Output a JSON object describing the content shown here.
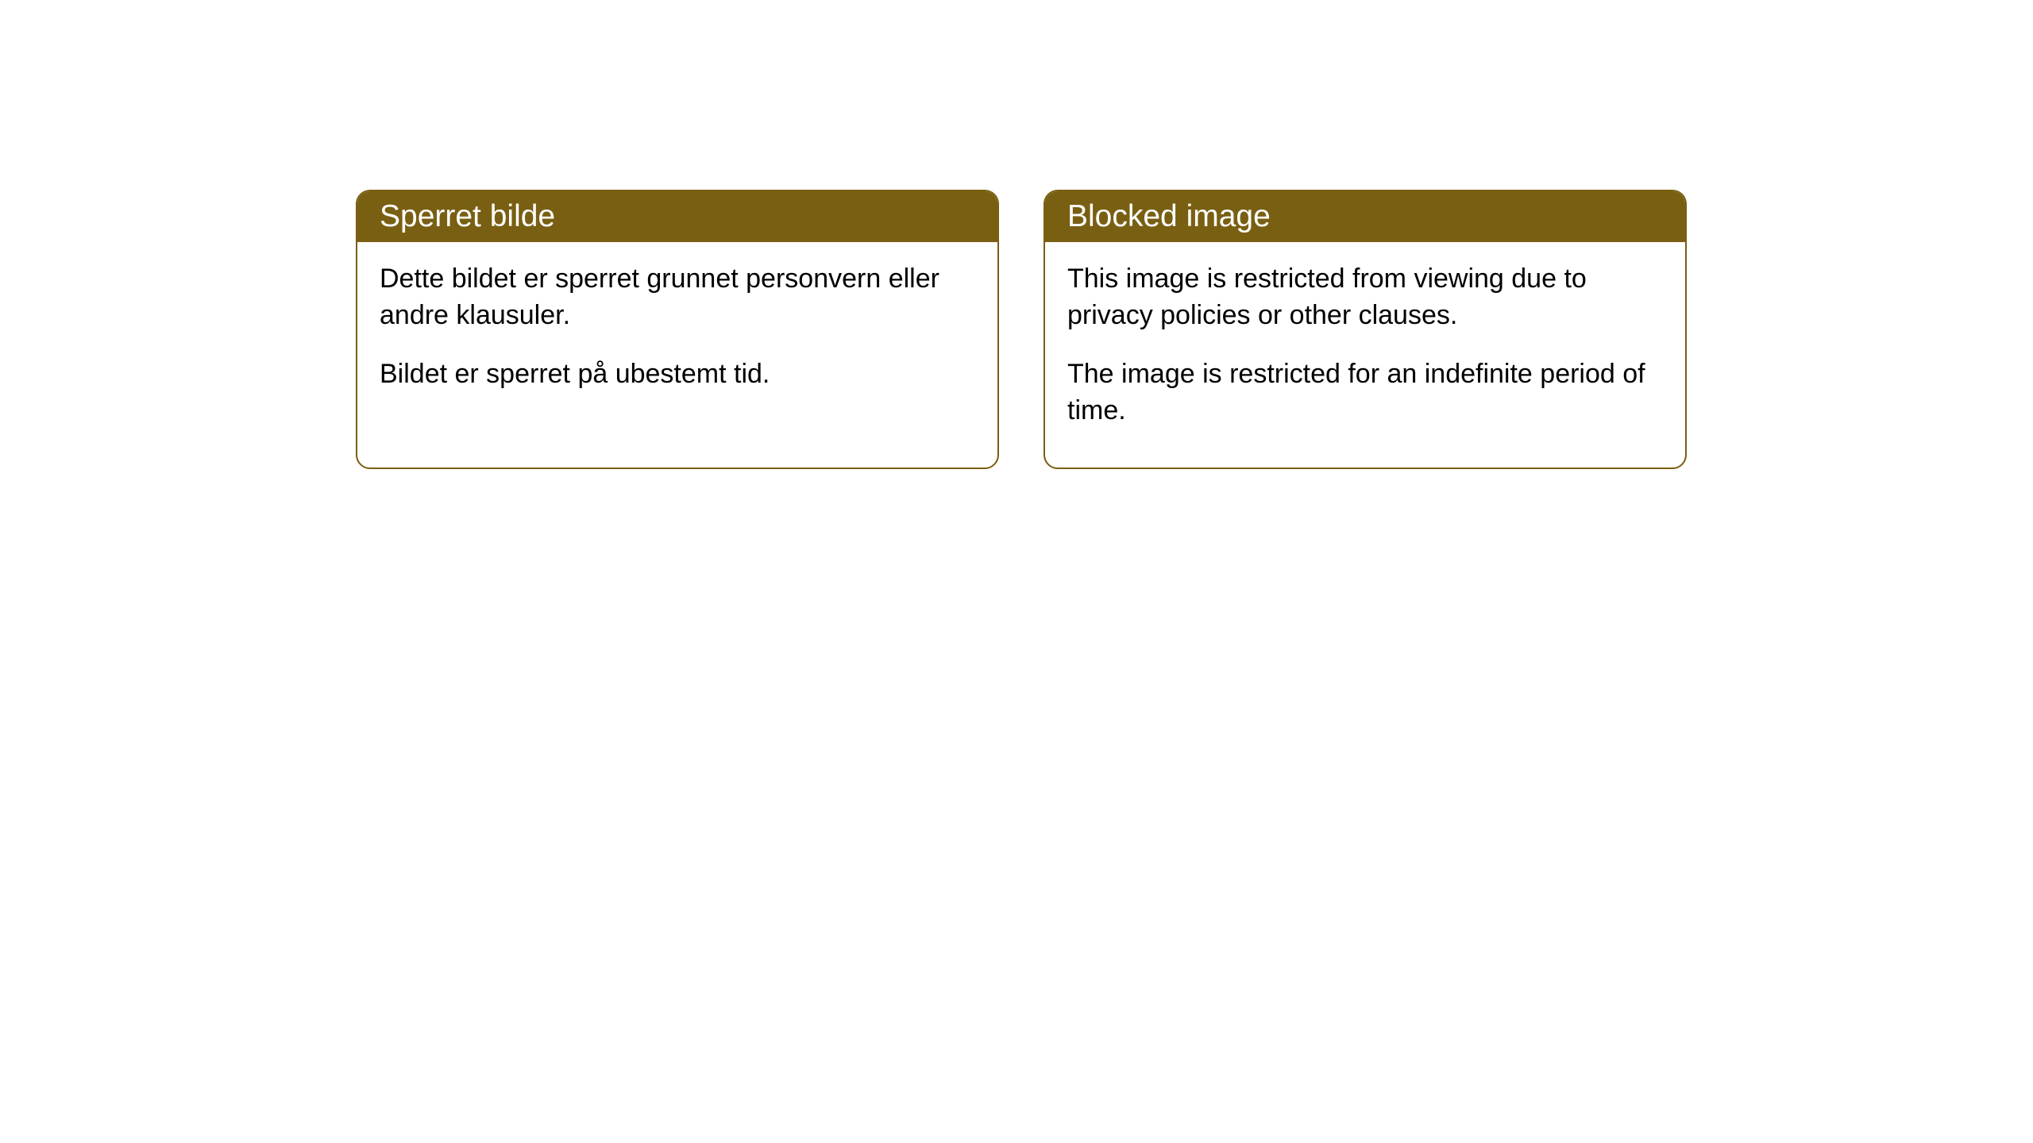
{
  "cards": [
    {
      "title": "Sperret bilde",
      "paragraph1": "Dette bildet er sperret grunnet personvern eller andre klausuler.",
      "paragraph2": "Bildet er sperret på ubestemt tid."
    },
    {
      "title": "Blocked image",
      "paragraph1": "This image is restricted from viewing due to privacy policies or other clauses.",
      "paragraph2": "The image is restricted for an indefinite period of time."
    }
  ],
  "style": {
    "header_background": "#795f12",
    "header_text_color": "#ffffff",
    "body_background": "#ffffff",
    "body_text_color": "#000000",
    "border_color": "#795f12",
    "border_radius": 18,
    "header_font_size": 39,
    "body_font_size": 34
  }
}
